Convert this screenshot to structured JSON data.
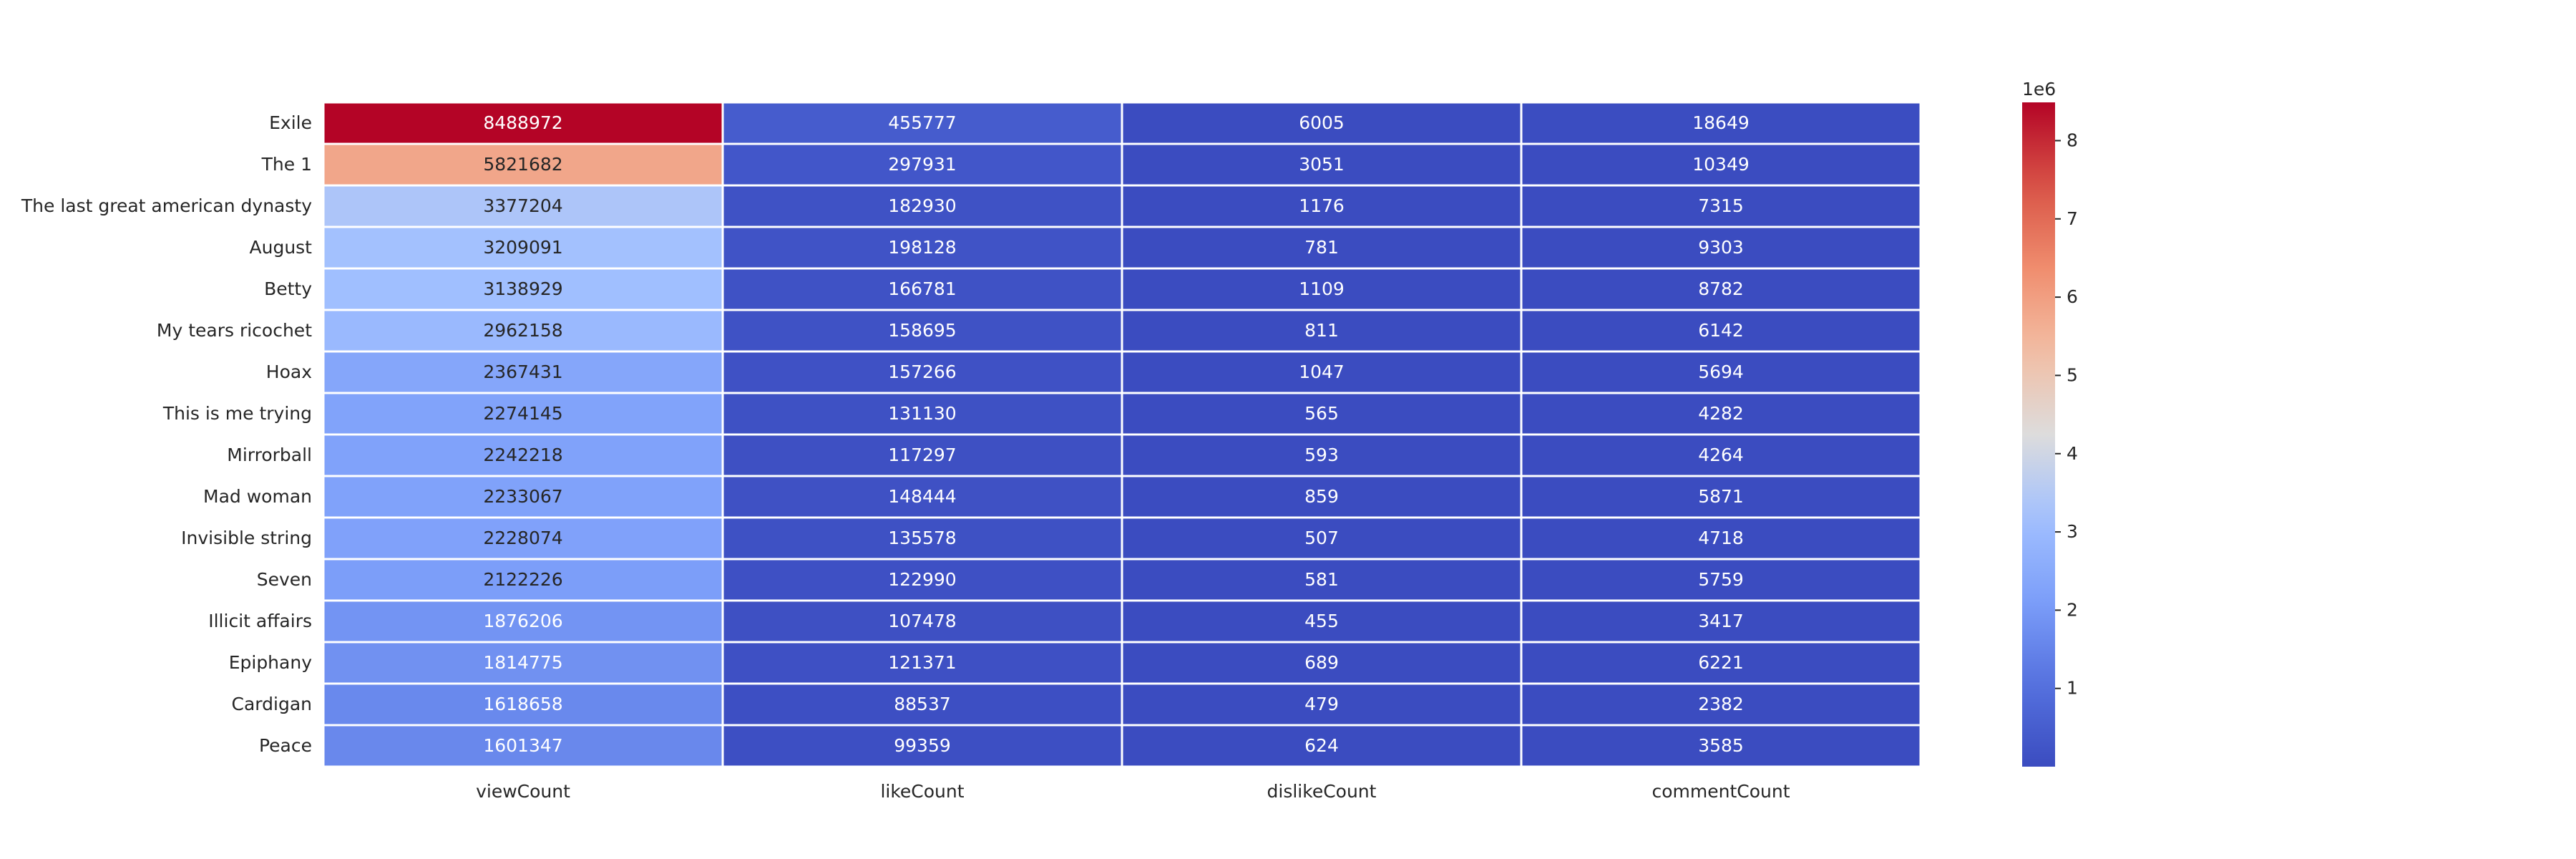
{
  "chart_data": {
    "type": "heatmap",
    "rows": [
      "Exile",
      "The 1",
      "The last great american dynasty",
      "August",
      "Betty",
      "My tears ricochet",
      "Hoax",
      "This is me trying",
      "Mirrorball",
      "Mad woman",
      "Invisible string",
      "Seven",
      "Illicit affairs",
      "Epiphany",
      "Cardigan",
      "Peace"
    ],
    "columns": [
      "viewCount",
      "likeCount",
      "dislikeCount",
      "commentCount"
    ],
    "values": [
      [
        8488972,
        455777,
        6005,
        18649
      ],
      [
        5821682,
        297931,
        3051,
        10349
      ],
      [
        3377204,
        182930,
        1176,
        7315
      ],
      [
        3209091,
        198128,
        781,
        9303
      ],
      [
        3138929,
        166781,
        1109,
        8782
      ],
      [
        2962158,
        158695,
        811,
        6142
      ],
      [
        2367431,
        157266,
        1047,
        5694
      ],
      [
        2274145,
        131130,
        565,
        4282
      ],
      [
        2242218,
        117297,
        593,
        4264
      ],
      [
        2233067,
        148444,
        859,
        5871
      ],
      [
        2228074,
        135578,
        507,
        4718
      ],
      [
        2122226,
        122990,
        581,
        5759
      ],
      [
        1876206,
        107478,
        455,
        3417
      ],
      [
        1814775,
        121371,
        689,
        6221
      ],
      [
        1618658,
        88537,
        479,
        2382
      ],
      [
        1601347,
        99359,
        624,
        3585
      ]
    ],
    "colormap": "coolwarm",
    "vmin": 455,
    "vmax": 8488972,
    "colorbar": {
      "ticks": [
        1,
        2,
        3,
        4,
        5,
        6,
        7,
        8
      ],
      "tick_labels": [
        "1",
        "2",
        "3",
        "4",
        "5",
        "6",
        "7",
        "8"
      ],
      "multiplier_label": "1e6",
      "placement": "right"
    },
    "grid": false
  }
}
